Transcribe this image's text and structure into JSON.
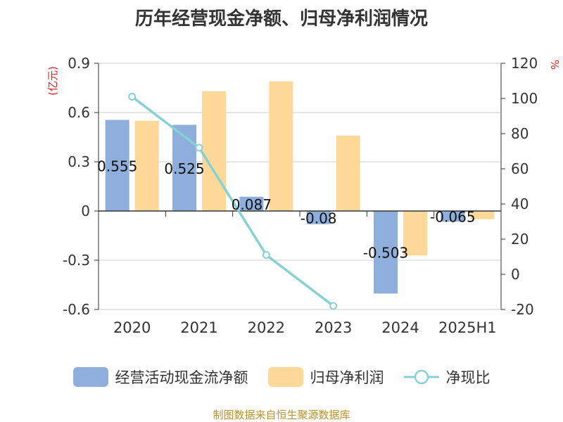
{
  "title": "历年经营现金净额、归母净利润情况",
  "source": "制图数据来自恒生聚源数据库",
  "chart_data": {
    "type": "bar",
    "categories": [
      "2020",
      "2021",
      "2022",
      "2023",
      "2024",
      "2025H1"
    ],
    "left_axis": {
      "unit": "(亿元)",
      "ylim": [
        -0.6,
        0.9
      ],
      "ticks": [
        "-0.6",
        "-0.3",
        "0",
        "0.3",
        "0.6",
        "0.9"
      ]
    },
    "right_axis": {
      "unit": "%",
      "ylim": [
        -20,
        120
      ],
      "ticks": [
        "-20",
        "0",
        "20",
        "40",
        "60",
        "80",
        "100",
        "120"
      ]
    },
    "series": [
      {
        "name": "经营活动现金流净额",
        "type": "bar",
        "axis": "left",
        "color": "#8eaedb",
        "values": [
          0.555,
          0.525,
          0.087,
          -0.08,
          -0.503,
          -0.065
        ],
        "labels": [
          "0.555",
          "0.525",
          "0.087",
          "-0.08",
          "-0.503",
          "-0.065"
        ]
      },
      {
        "name": "归母净利润",
        "type": "bar",
        "axis": "left",
        "color": "#fed898",
        "values": [
          0.55,
          0.73,
          0.79,
          0.46,
          -0.27,
          -0.05
        ]
      },
      {
        "name": "净现比",
        "type": "line",
        "axis": "right",
        "color": "#86d1d6",
        "values": [
          101,
          72,
          11,
          -18,
          null,
          null
        ]
      }
    ],
    "grid": true
  }
}
